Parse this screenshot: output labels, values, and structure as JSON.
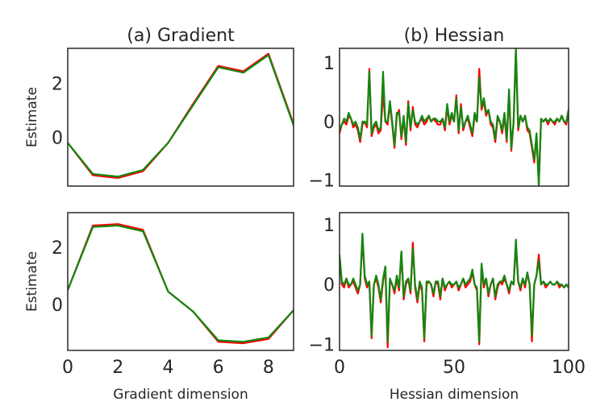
{
  "figure": {
    "colors": {
      "series_red": "#ff0000",
      "series_green": "#118811",
      "frame": "#262626"
    }
  },
  "chart_data": [
    {
      "id": "gradient-top",
      "type": "line",
      "title": "(a) Gradient",
      "xlabel": "",
      "ylabel": "Estimate",
      "xlim": [
        0,
        9
      ],
      "ylim": [
        -1.8,
        3.3
      ],
      "xticks": [],
      "yticks": [
        0,
        2
      ],
      "grid": false,
      "x": [
        0,
        1,
        2,
        3,
        4,
        5,
        6,
        7,
        8,
        9
      ],
      "series": [
        {
          "color": "#ff0000",
          "values": [
            -0.2,
            -1.4,
            -1.5,
            -1.25,
            -0.2,
            1.25,
            2.65,
            2.45,
            3.1,
            0.5
          ]
        },
        {
          "color": "#118811",
          "values": [
            -0.2,
            -1.35,
            -1.45,
            -1.2,
            -0.2,
            1.2,
            2.6,
            2.4,
            3.05,
            0.45
          ]
        }
      ]
    },
    {
      "id": "hessian-top",
      "type": "line",
      "title": "(b) Hessian",
      "xlabel": "",
      "ylabel": "",
      "xlim": [
        0,
        100
      ],
      "ylim": [
        -1.1,
        1.25
      ],
      "xticks": [],
      "yticks": [
        -1,
        0,
        1
      ],
      "grid": false,
      "x": [
        0,
        1,
        2,
        3,
        4,
        5,
        6,
        7,
        8,
        9,
        10,
        11,
        12,
        13,
        14,
        15,
        16,
        17,
        18,
        19,
        20,
        21,
        22,
        23,
        24,
        25,
        26,
        27,
        28,
        29,
        30,
        31,
        32,
        33,
        34,
        35,
        36,
        37,
        38,
        39,
        40,
        41,
        42,
        43,
        44,
        45,
        46,
        47,
        48,
        49,
        50,
        51,
        52,
        53,
        54,
        55,
        56,
        57,
        58,
        59,
        60,
        61,
        62,
        63,
        64,
        65,
        66,
        67,
        68,
        69,
        70,
        71,
        72,
        73,
        74,
        75,
        76,
        77,
        78,
        79,
        80,
        81,
        82,
        83,
        84,
        85,
        86,
        87,
        88,
        89,
        90,
        91,
        92,
        93,
        94,
        95,
        96,
        97,
        98,
        99,
        100
      ],
      "series": [
        {
          "color": "#ff0000",
          "values": [
            -0.2,
            -0.05,
            0.0,
            -0.05,
            0.1,
            0.05,
            -0.1,
            -0.05,
            -0.15,
            -0.35,
            -0.05,
            0.0,
            -0.1,
            0.9,
            -0.25,
            -0.1,
            -0.05,
            -0.2,
            -0.15,
            0.5,
            0.0,
            -0.05,
            0.3,
            -0.05,
            -0.45,
            0.1,
            0.2,
            -0.3,
            0.05,
            -0.4,
            0.35,
            -0.15,
            0.25,
            -0.05,
            -0.1,
            0.0,
            0.05,
            -0.05,
            0.0,
            0.1,
            0.0,
            0.05,
            0.0,
            -0.05,
            -0.05,
            0.05,
            -0.15,
            0.25,
            -0.05,
            0.1,
            0.0,
            0.45,
            -0.2,
            0.3,
            -0.15,
            0.0,
            0.05,
            -0.1,
            -0.25,
            0.1,
            0.0,
            0.9,
            0.2,
            0.35,
            0.1,
            0.2,
            -0.05,
            -0.1,
            -0.35,
            0.05,
            0.0,
            -0.2,
            0.1,
            -0.35,
            0.5,
            -0.5,
            0.0,
            1.2,
            -0.15,
            0.1,
            0.0,
            0.1,
            -0.15,
            -0.2,
            -0.45,
            -0.7,
            -0.25,
            -1.05,
            0.05,
            0.0,
            0.05,
            -0.05,
            0.05,
            0.0,
            -0.05,
            0.05,
            0.0,
            0.1,
            0.0,
            -0.05,
            0.2
          ]
        },
        {
          "color": "#118811",
          "values": [
            -0.15,
            -0.05,
            0.05,
            0.0,
            0.15,
            0.05,
            -0.05,
            0.0,
            -0.1,
            -0.3,
            0.0,
            0.0,
            -0.05,
            0.85,
            -0.2,
            -0.05,
            0.0,
            -0.15,
            -0.1,
            0.85,
            0.0,
            0.0,
            0.35,
            0.0,
            -0.4,
            0.15,
            0.15,
            -0.25,
            0.1,
            -0.35,
            0.3,
            -0.1,
            0.2,
            0.0,
            -0.05,
            0.0,
            0.1,
            0.0,
            0.05,
            0.1,
            0.0,
            0.05,
            0.05,
            0.0,
            0.0,
            0.05,
            -0.1,
            0.3,
            0.0,
            0.15,
            0.0,
            0.4,
            -0.15,
            0.25,
            -0.1,
            0.0,
            0.1,
            -0.05,
            -0.2,
            0.15,
            0.0,
            0.75,
            0.25,
            0.4,
            0.15,
            0.2,
            0.0,
            -0.05,
            -0.3,
            0.1,
            0.0,
            -0.15,
            0.15,
            -0.3,
            0.55,
            -0.45,
            0.0,
            1.25,
            -0.1,
            0.1,
            0.0,
            0.1,
            -0.1,
            -0.15,
            -0.4,
            -0.65,
            -0.2,
            -1.1,
            0.05,
            0.0,
            0.05,
            0.0,
            0.05,
            0.0,
            0.0,
            0.05,
            0.0,
            0.1,
            0.0,
            0.0,
            0.2
          ]
        }
      ]
    },
    {
      "id": "gradient-bottom",
      "type": "line",
      "title": "",
      "xlabel": "Gradient dimension",
      "ylabel": "Estimate",
      "xlim": [
        0,
        9
      ],
      "ylim": [
        -1.6,
        3.2
      ],
      "xticks": [
        0,
        2,
        4,
        6,
        8
      ],
      "yticks": [
        0,
        2
      ],
      "grid": false,
      "x": [
        0,
        1,
        2,
        3,
        4,
        5,
        6,
        7,
        8,
        9
      ],
      "series": [
        {
          "color": "#ff0000",
          "values": [
            0.5,
            2.75,
            2.8,
            2.6,
            0.45,
            -0.25,
            -1.3,
            -1.35,
            -1.2,
            -0.2
          ]
        },
        {
          "color": "#118811",
          "values": [
            0.5,
            2.7,
            2.75,
            2.55,
            0.45,
            -0.25,
            -1.25,
            -1.3,
            -1.15,
            -0.2
          ]
        }
      ]
    },
    {
      "id": "hessian-bottom",
      "type": "line",
      "title": "",
      "xlabel": "Hessian dimension",
      "ylabel": "",
      "xlim": [
        0,
        100
      ],
      "ylim": [
        -1.1,
        1.2
      ],
      "xticks": [
        0,
        50,
        100
      ],
      "yticks": [
        -1,
        0,
        1
      ],
      "grid": false,
      "x": [
        0,
        1,
        2,
        3,
        4,
        5,
        6,
        7,
        8,
        9,
        10,
        11,
        12,
        13,
        14,
        15,
        16,
        17,
        18,
        19,
        20,
        21,
        22,
        23,
        24,
        25,
        26,
        27,
        28,
        29,
        30,
        31,
        32,
        33,
        34,
        35,
        36,
        37,
        38,
        39,
        40,
        41,
        42,
        43,
        44,
        45,
        46,
        47,
        48,
        49,
        50,
        51,
        52,
        53,
        54,
        55,
        56,
        57,
        58,
        59,
        60,
        61,
        62,
        63,
        64,
        65,
        66,
        67,
        68,
        69,
        70,
        71,
        72,
        73,
        74,
        75,
        76,
        77,
        78,
        79,
        80,
        81,
        82,
        83,
        84,
        85,
        86,
        87,
        88,
        89,
        90,
        91,
        92,
        93,
        94,
        95,
        96,
        97,
        98,
        99,
        100
      ],
      "series": [
        {
          "color": "#ff0000",
          "values": [
            0.45,
            0.0,
            -0.05,
            0.1,
            -0.05,
            0.0,
            0.05,
            -0.05,
            -0.15,
            0.0,
            0.8,
            0.1,
            -0.05,
            0.05,
            -0.9,
            0.0,
            0.1,
            -0.05,
            -0.3,
            0.05,
            0.3,
            -1.05,
            0.05,
            0.0,
            -0.15,
            0.1,
            -0.1,
            0.55,
            -0.25,
            0.0,
            0.1,
            -0.15,
            0.7,
            -0.05,
            -0.3,
            0.0,
            -0.1,
            -0.95,
            0.0,
            0.05,
            0.0,
            -0.2,
            0.05,
            0.0,
            -0.25,
            0.1,
            -0.1,
            0.0,
            0.05,
            -0.05,
            0.0,
            0.05,
            -0.1,
            0.0,
            0.1,
            -0.05,
            0.0,
            0.05,
            0.2,
            0.0,
            -0.1,
            -1.0,
            0.3,
            -0.05,
            0.1,
            -0.2,
            0.0,
            0.1,
            -0.25,
            -0.05,
            0.05,
            0.0,
            0.1,
            0.0,
            -0.15,
            0.05,
            0.0,
            0.65,
            0.05,
            -0.1,
            0.1,
            -0.05,
            0.2,
            0.0,
            -0.95,
            0.0,
            0.15,
            0.5,
            0.0,
            0.05,
            -0.05,
            0.0,
            0.05,
            0.0,
            0.0,
            0.05,
            -0.05,
            0.0,
            -0.05,
            0.0,
            -0.05
          ]
        },
        {
          "color": "#118811",
          "values": [
            0.5,
            0.05,
            0.0,
            0.1,
            0.0,
            0.0,
            0.1,
            0.0,
            -0.1,
            0.0,
            0.85,
            0.15,
            0.0,
            0.05,
            -0.85,
            0.0,
            0.15,
            0.0,
            -0.25,
            0.1,
            0.3,
            -0.95,
            0.1,
            0.0,
            -0.1,
            0.15,
            -0.05,
            0.55,
            -0.2,
            0.05,
            0.1,
            -0.1,
            0.6,
            0.0,
            -0.25,
            0.05,
            -0.05,
            -0.9,
            0.05,
            0.05,
            0.0,
            -0.15,
            0.05,
            0.05,
            -0.2,
            0.1,
            -0.05,
            0.0,
            0.05,
            0.0,
            0.0,
            0.05,
            -0.05,
            0.0,
            0.1,
            0.0,
            0.05,
            0.1,
            0.25,
            0.0,
            -0.05,
            -0.95,
            0.35,
            0.0,
            0.1,
            -0.15,
            0.0,
            0.1,
            -0.2,
            0.0,
            0.05,
            0.05,
            0.15,
            0.0,
            -0.1,
            0.05,
            0.0,
            0.75,
            0.05,
            -0.05,
            0.1,
            0.0,
            0.2,
            0.0,
            -0.85,
            0.0,
            0.15,
            0.4,
            0.0,
            0.05,
            0.0,
            0.0,
            0.05,
            0.0,
            0.0,
            0.05,
            0.0,
            0.0,
            -0.05,
            0.0,
            -0.05
          ]
        }
      ]
    }
  ]
}
